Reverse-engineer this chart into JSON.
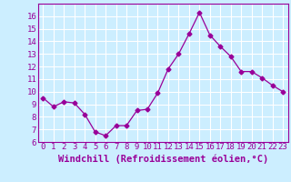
{
  "x": [
    0,
    1,
    2,
    3,
    4,
    5,
    6,
    7,
    8,
    9,
    10,
    11,
    12,
    13,
    14,
    15,
    16,
    17,
    18,
    19,
    20,
    21,
    22,
    23
  ],
  "y": [
    9.5,
    8.8,
    9.2,
    9.1,
    8.2,
    6.8,
    6.5,
    7.3,
    7.3,
    8.5,
    8.6,
    9.9,
    11.8,
    13.0,
    14.6,
    16.3,
    14.5,
    13.6,
    12.8,
    11.6,
    11.6,
    11.1,
    10.5,
    10.0
  ],
  "line_color": "#990099",
  "marker": "D",
  "marker_size": 2.5,
  "bg_color": "#cceeff",
  "grid_color": "#ffffff",
  "xlabel": "Windchill (Refroidissement éolien,°C)",
  "xlim": [
    -0.5,
    23.5
  ],
  "ylim": [
    6,
    17
  ],
  "yticks": [
    6,
    7,
    8,
    9,
    10,
    11,
    12,
    13,
    14,
    15,
    16
  ],
  "xticks": [
    0,
    1,
    2,
    3,
    4,
    5,
    6,
    7,
    8,
    9,
    10,
    11,
    12,
    13,
    14,
    15,
    16,
    17,
    18,
    19,
    20,
    21,
    22,
    23
  ],
  "tick_label_fontsize": 6.5,
  "xlabel_fontsize": 7.5
}
